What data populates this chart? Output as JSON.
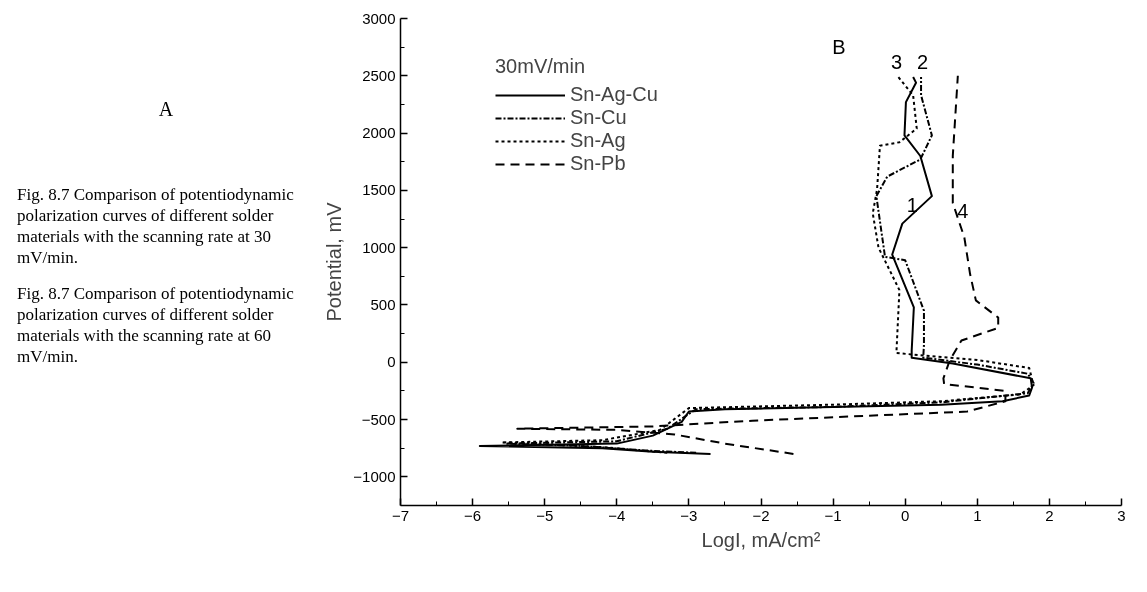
{
  "chart_data": {
    "type": "line",
    "xlabel": "LogI, mA/cm²",
    "ylabel": "Potential, mV",
    "legend_title": "30mV/min",
    "xlim": [
      -7,
      3
    ],
    "ylim": [
      -1250,
      3000
    ],
    "xticks": [
      -7,
      -6,
      -5,
      -4,
      -3,
      -2,
      -1,
      0,
      1,
      2,
      3
    ],
    "yticks": [
      -1000,
      -500,
      0,
      500,
      1000,
      1500,
      2000,
      2500,
      3000
    ],
    "grid": false,
    "legend": "top left",
    "marker": "none",
    "series": [
      {
        "name": "Sn-Ag-Cu",
        "color": "#000000",
        "line_style": "solid",
        "x": [
          -2.7,
          -3.5,
          -4.2,
          -5.9,
          -4.0,
          -3.5,
          -3.1,
          -3.0,
          -2.5,
          -1,
          0.5,
          1.35,
          1.72,
          1.76,
          1.74,
          0.66,
          0.09,
          0.09,
          0.12,
          -0.18,
          -0.04,
          0.37,
          0.21,
          -0.01,
          0.01,
          0.15,
          0.11
        ],
        "values": [
          -800,
          -780,
          -750,
          -730,
          -710,
          -640,
          -520,
          -430,
          -410,
          -390,
          -370,
          -340,
          -290,
          -220,
          -140,
          -10,
          40,
          100,
          480,
          940,
          1210,
          1450,
          1800,
          1980,
          2270,
          2440,
          2490
        ]
      },
      {
        "name": "Sn-Cu",
        "color": "#000000",
        "line_style": "dashdot",
        "x": [
          -2.9,
          -3.6,
          -4.5,
          -5.54,
          -4.0,
          -3.3,
          -3.0,
          -2.9,
          -1,
          0.5,
          1.7,
          1.78,
          1.7,
          1.0,
          0.25,
          0.26,
          0.26,
          0.0,
          -0.28,
          -0.4,
          -0.25,
          0.21,
          0.37,
          0.22,
          0.22
        ],
        "values": [
          -790,
          -770,
          -730,
          -710,
          -690,
          -580,
          -450,
          -410,
          -390,
          -350,
          -270,
          -180,
          -100,
          -20,
          40,
          150,
          450,
          890,
          920,
          1450,
          1620,
          1770,
          1980,
          2330,
          2490
        ]
      },
      {
        "name": "Sn-Ag",
        "color": "#000000",
        "line_style": "dotted",
        "x": [
          -3.3,
          -4.2,
          -5.6,
          -4.2,
          -3.4,
          -3.0,
          -1,
          0.5,
          1.6,
          1.78,
          1.72,
          1.0,
          -0.12,
          -0.12,
          -0.08,
          -0.37,
          -0.45,
          -0.39,
          -0.35,
          -0.08,
          0.16,
          0.11,
          -0.11
        ],
        "values": [
          -790,
          -740,
          -700,
          -680,
          -590,
          -400,
          -370,
          -340,
          -280,
          -200,
          -50,
          20,
          80,
          110,
          630,
          1000,
          1300,
          1510,
          1890,
          1920,
          2040,
          2330,
          2500
        ]
      },
      {
        "name": "Sn-Pb",
        "color": "#000000",
        "line_style": "dashed",
        "x": [
          -1.55,
          -2.5,
          -3.2,
          -4.0,
          -5.38,
          -3.5,
          -2.12,
          0.86,
          1.39,
          1.39,
          0.54,
          0.53,
          0.62,
          0.78,
          1.29,
          1.29,
          0.98,
          0.9,
          0.82,
          0.66,
          0.66,
          0.73
        ],
        "values": [
          -800,
          -710,
          -630,
          -590,
          -580,
          -560,
          -510,
          -430,
          -340,
          -250,
          -190,
          -140,
          20,
          190,
          300,
          390,
          540,
          770,
          1090,
          1390,
          1800,
          2500
        ]
      }
    ],
    "annotations": [
      "A",
      "Fig. 8.7 Comparison of potentiodynamic polarization curves of different solder materials with the scanning rate at 30 mV/min.",
      "Fig. 8.7 Comparison of potentiodynamic polarization curves of different solder materials with the scanning rate at 60 mV/min.",
      "1",
      "2",
      "3",
      "4",
      "B"
    ]
  }
}
